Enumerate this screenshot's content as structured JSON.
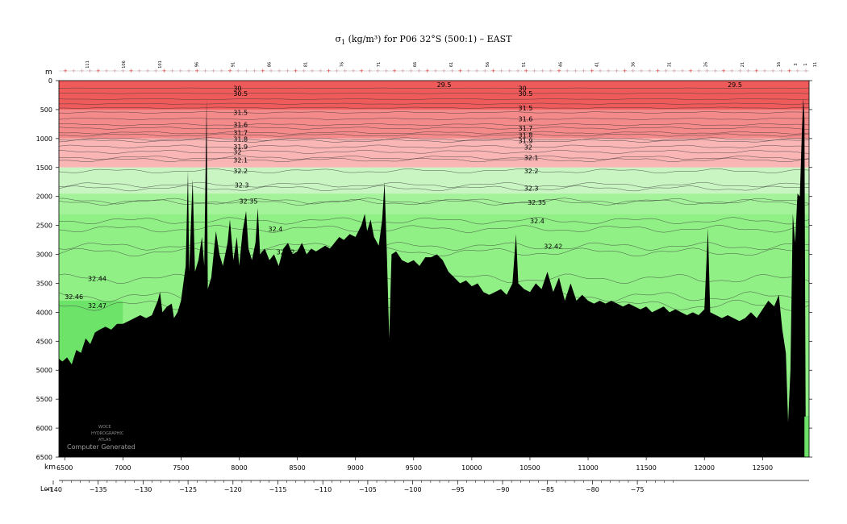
{
  "title_prefix": "σ",
  "title_sub": "1",
  "title_rest": " (kg/m³) for P06 32°S (500:1) – EAST",
  "axis": {
    "depth_unit": "m",
    "distance_unit": "km",
    "lon_label": "Lon"
  },
  "watermark": {
    "line1": "WOCE",
    "line2": "HYDROGRAPHIC",
    "line3": "ATLAS",
    "line4": "Computer Generated"
  },
  "colors": {
    "red_dark": "#ef5b5b",
    "red_mid": "#f58a8a",
    "red_light": "#fab5b5",
    "green_light": "#c8f5c2",
    "green_mid": "#a4f29a",
    "green_main": "#90ef85",
    "green_deep": "#6ee36a",
    "bottom": "#000000"
  },
  "chart_data": {
    "type": "section",
    "title": "σ1 (kg/m³) for P06 32°S (500:1) – EAST",
    "xlabel": "km",
    "ylabel": "m",
    "xlim": [
      6450,
      12900
    ],
    "ylim": [
      6500,
      0
    ],
    "x_ticks": [
      6500,
      7000,
      7500,
      8000,
      8500,
      9000,
      9500,
      10000,
      10500,
      11000,
      11500,
      12000,
      12500
    ],
    "y_ticks": [
      0,
      500,
      1000,
      1500,
      2000,
      2500,
      3000,
      3500,
      4000,
      4500,
      5000,
      5500,
      6000,
      6500
    ],
    "lon_ticks": [
      -140,
      -135,
      -130,
      -125,
      -120,
      -115,
      -110,
      -105,
      -100,
      -95,
      -90,
      -85,
      -80,
      -75
    ],
    "station_labels": [
      "111",
      "106",
      "101",
      "96",
      "91",
      "86",
      "81",
      "76",
      "71",
      "66",
      "61",
      "56",
      "51",
      "46",
      "41",
      "36",
      "31",
      "26",
      "21",
      "16",
      "11",
      "6",
      "3",
      "1"
    ],
    "contour_labels": [
      {
        "text": "29.5",
        "x": 9700,
        "depth": 70
      },
      {
        "text": "29.5",
        "x": 12200,
        "depth": 70
      },
      {
        "text": "30",
        "x": 7950,
        "depth": 130
      },
      {
        "text": "30.5",
        "x": 7950,
        "depth": 220
      },
      {
        "text": "31.5",
        "x": 7950,
        "depth": 550
      },
      {
        "text": "31.6",
        "x": 7950,
        "depth": 760
      },
      {
        "text": "31.7",
        "x": 7950,
        "depth": 900
      },
      {
        "text": "31.8",
        "x": 7950,
        "depth": 1010
      },
      {
        "text": "31.9",
        "x": 7950,
        "depth": 1140
      },
      {
        "text": "32",
        "x": 7950,
        "depth": 1230
      },
      {
        "text": "32.1",
        "x": 7950,
        "depth": 1370
      },
      {
        "text": "32.2",
        "x": 7950,
        "depth": 1560
      },
      {
        "text": "32.3",
        "x": 7960,
        "depth": 1800
      },
      {
        "text": "32.35",
        "x": 8000,
        "depth": 2080
      },
      {
        "text": "32.4",
        "x": 8250,
        "depth": 2560
      },
      {
        "text": "32.42",
        "x": 8320,
        "depth": 2960
      },
      {
        "text": "32.44",
        "x": 6700,
        "depth": 3420
      },
      {
        "text": "32.46",
        "x": 6500,
        "depth": 3730
      },
      {
        "text": "32.47",
        "x": 6700,
        "depth": 3880
      },
      {
        "text": "30",
        "x": 10400,
        "depth": 130
      },
      {
        "text": "30.5",
        "x": 10400,
        "depth": 220
      },
      {
        "text": "31.5",
        "x": 10400,
        "depth": 470
      },
      {
        "text": "31.6",
        "x": 10400,
        "depth": 660
      },
      {
        "text": "31.7",
        "x": 10400,
        "depth": 820
      },
      {
        "text": "31.8",
        "x": 10400,
        "depth": 940
      },
      {
        "text": "31.9",
        "x": 10400,
        "depth": 1040
      },
      {
        "text": "32",
        "x": 10450,
        "depth": 1150
      },
      {
        "text": "32.1",
        "x": 10450,
        "depth": 1330
      },
      {
        "text": "32.2",
        "x": 10450,
        "depth": 1560
      },
      {
        "text": "32.3",
        "x": 10450,
        "depth": 1860
      },
      {
        "text": "32.35",
        "x": 10480,
        "depth": 2100
      },
      {
        "text": "32.4",
        "x": 10500,
        "depth": 2420
      },
      {
        "text": "32.42",
        "x": 10620,
        "depth": 2860
      }
    ],
    "color_bands": [
      {
        "from": 0,
        "to": 500,
        "color": "red_dark"
      },
      {
        "from": 500,
        "to": 1000,
        "color": "red_mid"
      },
      {
        "from": 1000,
        "to": 1500,
        "color": "red_light"
      },
      {
        "from": 1500,
        "to": 1950,
        "color": "green_light"
      },
      {
        "from": 1950,
        "to": 2300,
        "color": "green_mid"
      },
      {
        "from": 2300,
        "to": 6500,
        "color": "green_main"
      }
    ],
    "bottom_profile": [
      [
        6450,
        4800
      ],
      [
        6480,
        4850
      ],
      [
        6520,
        4780
      ],
      [
        6560,
        4900
      ],
      [
        6600,
        4650
      ],
      [
        6640,
        4700
      ],
      [
        6680,
        4450
      ],
      [
        6720,
        4550
      ],
      [
        6760,
        4350
      ],
      [
        6800,
        4300
      ],
      [
        6850,
        4250
      ],
      [
        6900,
        4300
      ],
      [
        6950,
        4200
      ],
      [
        7000,
        4200
      ],
      [
        7050,
        4150
      ],
      [
        7100,
        4100
      ],
      [
        7150,
        4050
      ],
      [
        7200,
        4100
      ],
      [
        7250,
        4050
      ],
      [
        7300,
        3800
      ],
      [
        7320,
        3650
      ],
      [
        7340,
        4000
      ],
      [
        7380,
        3900
      ],
      [
        7420,
        3850
      ],
      [
        7440,
        4100
      ],
      [
        7470,
        4000
      ],
      [
        7500,
        3800
      ],
      [
        7520,
        3500
      ],
      [
        7540,
        3200
      ],
      [
        7560,
        1550
      ],
      [
        7570,
        3300
      ],
      [
        7600,
        1700
      ],
      [
        7620,
        3300
      ],
      [
        7650,
        3100
      ],
      [
        7680,
        2700
      ],
      [
        7700,
        3200
      ],
      [
        7720,
        320
      ],
      [
        7730,
        3600
      ],
      [
        7760,
        3400
      ],
      [
        7780,
        3000
      ],
      [
        7800,
        2600
      ],
      [
        7830,
        3000
      ],
      [
        7860,
        3200
      ],
      [
        7900,
        2800
      ],
      [
        7920,
        2400
      ],
      [
        7950,
        3100
      ],
      [
        7980,
        2700
      ],
      [
        8000,
        3200
      ],
      [
        8030,
        2600
      ],
      [
        8060,
        2250
      ],
      [
        8080,
        2900
      ],
      [
        8110,
        3100
      ],
      [
        8140,
        2800
      ],
      [
        8160,
        2200
      ],
      [
        8180,
        3000
      ],
      [
        8220,
        2900
      ],
      [
        8260,
        3100
      ],
      [
        8300,
        3000
      ],
      [
        8340,
        3200
      ],
      [
        8380,
        2900
      ],
      [
        8420,
        2800
      ],
      [
        8460,
        3000
      ],
      [
        8500,
        2950
      ],
      [
        8540,
        2800
      ],
      [
        8580,
        3000
      ],
      [
        8620,
        2900
      ],
      [
        8660,
        2950
      ],
      [
        8700,
        2900
      ],
      [
        8740,
        2850
      ],
      [
        8780,
        2900
      ],
      [
        8820,
        2800
      ],
      [
        8860,
        2700
      ],
      [
        8900,
        2750
      ],
      [
        8950,
        2650
      ],
      [
        9000,
        2700
      ],
      [
        9050,
        2500
      ],
      [
        9080,
        2300
      ],
      [
        9100,
        2600
      ],
      [
        9130,
        2400
      ],
      [
        9160,
        2700
      ],
      [
        9200,
        2850
      ],
      [
        9230,
        2400
      ],
      [
        9250,
        1750
      ],
      [
        9270,
        3000
      ],
      [
        9290,
        4450
      ],
      [
        9310,
        3000
      ],
      [
        9350,
        2950
      ],
      [
        9400,
        3100
      ],
      [
        9450,
        3150
      ],
      [
        9500,
        3100
      ],
      [
        9550,
        3200
      ],
      [
        9600,
        3050
      ],
      [
        9650,
        3050
      ],
      [
        9700,
        3000
      ],
      [
        9750,
        3100
      ],
      [
        9800,
        3300
      ],
      [
        9850,
        3400
      ],
      [
        9900,
        3500
      ],
      [
        9950,
        3450
      ],
      [
        10000,
        3550
      ],
      [
        10050,
        3500
      ],
      [
        10100,
        3650
      ],
      [
        10150,
        3700
      ],
      [
        10200,
        3650
      ],
      [
        10250,
        3600
      ],
      [
        10300,
        3700
      ],
      [
        10350,
        3500
      ],
      [
        10380,
        2650
      ],
      [
        10400,
        3500
      ],
      [
        10450,
        3600
      ],
      [
        10500,
        3650
      ],
      [
        10550,
        3500
      ],
      [
        10600,
        3600
      ],
      [
        10650,
        3300
      ],
      [
        10700,
        3650
      ],
      [
        10750,
        3400
      ],
      [
        10800,
        3800
      ],
      [
        10850,
        3500
      ],
      [
        10900,
        3800
      ],
      [
        10950,
        3700
      ],
      [
        11000,
        3800
      ],
      [
        11050,
        3850
      ],
      [
        11100,
        3800
      ],
      [
        11150,
        3850
      ],
      [
        11200,
        3800
      ],
      [
        11250,
        3850
      ],
      [
        11300,
        3900
      ],
      [
        11350,
        3850
      ],
      [
        11400,
        3900
      ],
      [
        11450,
        3950
      ],
      [
        11500,
        3900
      ],
      [
        11550,
        4000
      ],
      [
        11600,
        3950
      ],
      [
        11650,
        3900
      ],
      [
        11700,
        4000
      ],
      [
        11750,
        3950
      ],
      [
        11800,
        4000
      ],
      [
        11850,
        4050
      ],
      [
        11900,
        4000
      ],
      [
        11950,
        4050
      ],
      [
        12000,
        3950
      ],
      [
        12030,
        2550
      ],
      [
        12050,
        4000
      ],
      [
        12100,
        4050
      ],
      [
        12150,
        4100
      ],
      [
        12200,
        4050
      ],
      [
        12250,
        4100
      ],
      [
        12300,
        4150
      ],
      [
        12350,
        4100
      ],
      [
        12400,
        4000
      ],
      [
        12450,
        4100
      ],
      [
        12500,
        3950
      ],
      [
        12550,
        3800
      ],
      [
        12600,
        3900
      ],
      [
        12640,
        3700
      ],
      [
        12670,
        4300
      ],
      [
        12700,
        4700
      ],
      [
        12720,
        5900
      ],
      [
        12740,
        5000
      ],
      [
        12760,
        2300
      ],
      [
        12780,
        2800
      ],
      [
        12800,
        1950
      ],
      [
        12820,
        2000
      ],
      [
        12840,
        800
      ],
      [
        12850,
        300
      ],
      [
        12860,
        650
      ],
      [
        12870,
        5800
      ],
      [
        12900,
        5800
      ]
    ]
  }
}
